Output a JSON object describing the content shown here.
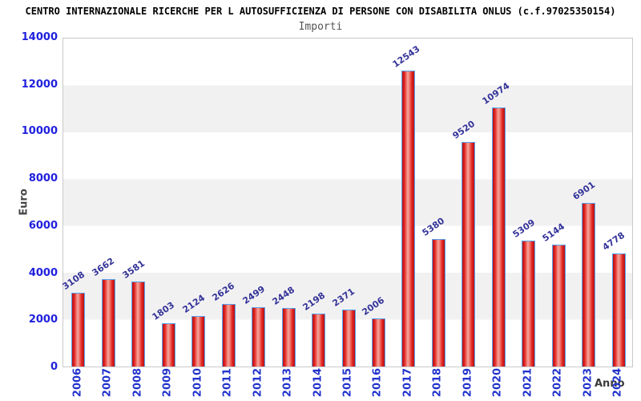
{
  "header": {
    "title": "CENTRO INTERNAZIONALE RICERCHE PER L AUTOSUFFICIENZA DI PERSONE CON DISABILITA ONLUS (c.f.97025350154)",
    "subtitle": "Importi"
  },
  "chart_data": {
    "type": "bar",
    "title": "Importi",
    "xlabel": "Anno",
    "ylabel": "Euro",
    "categories": [
      "2006",
      "2007",
      "2008",
      "2009",
      "2010",
      "2011",
      "2012",
      "2013",
      "2014",
      "2015",
      "2016",
      "2017",
      "2018",
      "2019",
      "2020",
      "2021",
      "2022",
      "2023",
      "2024"
    ],
    "values": [
      3108,
      3662,
      3581,
      1803,
      2124,
      2626,
      2499,
      2448,
      2198,
      2371,
      2006,
      12543,
      5380,
      9520,
      10974,
      5309,
      5144,
      6901,
      4778
    ],
    "ylim": [
      0,
      14000
    ],
    "ytick_step": 2000,
    "grid": "alternating-bands",
    "legend": "none",
    "colors": {
      "bar_fill": "#e2231e",
      "bar_fill_edge": "#b2141a",
      "bar_fill_highlight": "#f5a69e",
      "bar_border": "#58a6f0",
      "value_label": "#333399",
      "axis_tick": "#2020dd",
      "band": "#f2f1f2",
      "axis_title": "#444444",
      "title": "#000000",
      "subtitle": "#555555"
    }
  }
}
